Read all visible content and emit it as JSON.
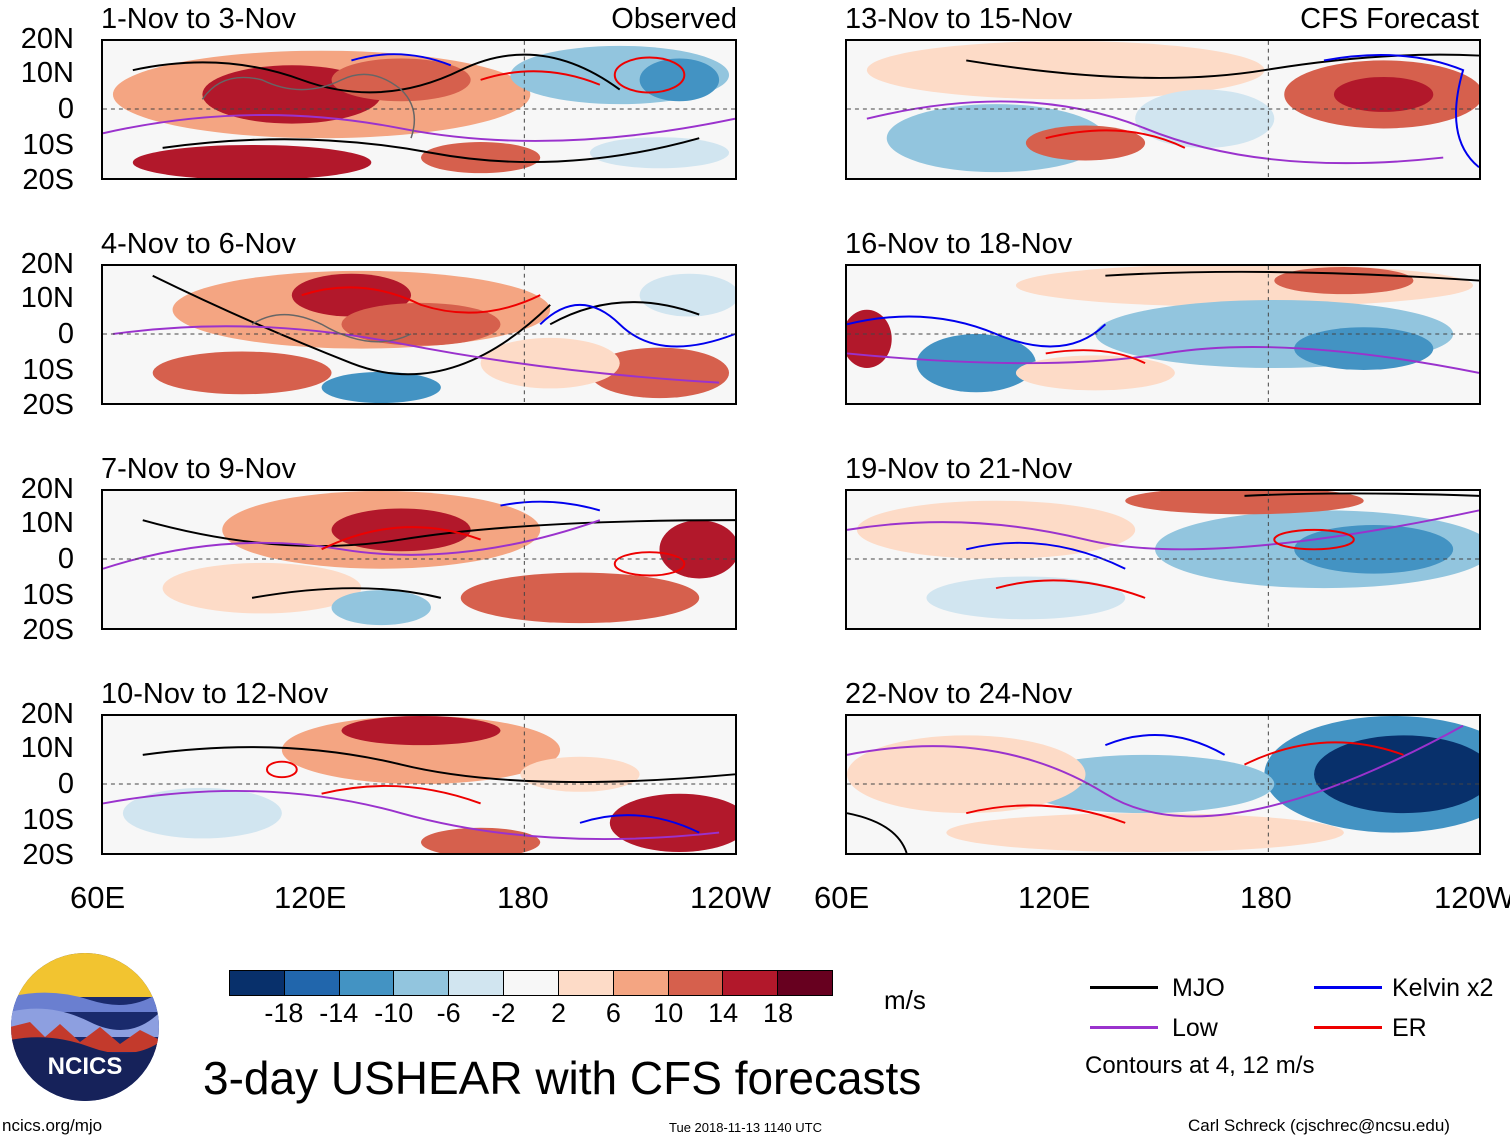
{
  "figure_title": "3-day USHEAR with CFS forecasts",
  "headers": {
    "observed": "Observed",
    "forecast": "CFS Forecast"
  },
  "panels_left": [
    "1-Nov to 3-Nov",
    "4-Nov to 6-Nov",
    "7-Nov to 9-Nov",
    "10-Nov to 12-Nov"
  ],
  "panels_right": [
    "13-Nov to 15-Nov",
    "16-Nov to 18-Nov",
    "19-Nov to 21-Nov",
    "22-Nov to 24-Nov"
  ],
  "lat_labels": [
    "20N",
    "10N",
    "0",
    "10S",
    "20S"
  ],
  "lon_labels": [
    "60E",
    "120E",
    "180",
    "120W"
  ],
  "colorbar": {
    "unit": "m/s",
    "ticks": [
      "-18",
      "-14",
      "-10",
      "-6",
      "-2",
      "2",
      "6",
      "10",
      "14",
      "18"
    ],
    "colors": [
      "#08306b",
      "#2166ac",
      "#4393c3",
      "#92c5de",
      "#d1e5f0",
      "#f7f7f7",
      "#fddbc7",
      "#f4a582",
      "#d6604d",
      "#b2182b",
      "#67001f"
    ]
  },
  "legend": {
    "items": [
      {
        "label": "MJO",
        "color": "#000000"
      },
      {
        "label": "Kelvin x2",
        "color": "#0000ee"
      },
      {
        "label": "Low",
        "color": "#9a32cd"
      },
      {
        "label": "ER",
        "color": "#ee0000"
      }
    ],
    "note": "Contours at 4, 12 m/s"
  },
  "logo_text": "NCICS",
  "footer": {
    "site": "ncics.org/mjo",
    "timestamp": "Tue 2018-11-13 1140 UTC",
    "author": "Carl Schreck (cjschrec@ncsu.edu)"
  }
}
